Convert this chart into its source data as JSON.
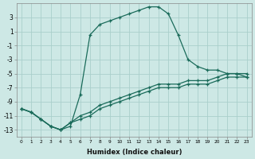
{
  "xlabel": "Humidex (Indice chaleur)",
  "background_color": "#cde8e5",
  "grid_color": "#aacfcb",
  "line_color": "#1a6b5a",
  "xlim": [
    -0.5,
    23.5
  ],
  "ylim": [
    -14,
    5
  ],
  "xtick_vals": [
    0,
    1,
    2,
    3,
    4,
    5,
    6,
    7,
    8,
    9,
    10,
    11,
    12,
    13,
    14,
    15,
    16,
    17,
    18,
    19,
    20,
    21,
    22,
    23
  ],
  "xtick_labels": [
    "0",
    "1",
    "2",
    "3",
    "4",
    "5",
    "6",
    "7",
    "8",
    "9",
    "10",
    "11",
    "12",
    "13",
    "14",
    "15",
    "16",
    "17",
    "18",
    "19",
    "20",
    "21",
    "22",
    "23"
  ],
  "ytick_values": [
    3,
    1,
    -1,
    -3,
    -5,
    -7,
    -9,
    -11,
    -13
  ],
  "series": [
    {
      "x": [
        0,
        1,
        2,
        3,
        4,
        5,
        6,
        7,
        8,
        9,
        10,
        11,
        12,
        13,
        14,
        15,
        16,
        17,
        18,
        19,
        20,
        21,
        22,
        23
      ],
      "y": [
        -10.0,
        -10.5,
        -11.5,
        -12.5,
        -13.0,
        -12.5,
        -8.0,
        0.5,
        2.0,
        2.5,
        3.0,
        3.5,
        4.0,
        4.5,
        4.5,
        3.5,
        0.5,
        -3.0,
        -4.0,
        -4.5,
        -4.5,
        -5.0,
        -5.0,
        -5.5
      ]
    },
    {
      "x": [
        0,
        1,
        2,
        3,
        4,
        5,
        6,
        7,
        8,
        9,
        10,
        11,
        12,
        13,
        14,
        15,
        16,
        17,
        18,
        19,
        20,
        21,
        22,
        23
      ],
      "y": [
        -10.0,
        -10.5,
        -11.5,
        -12.5,
        -13.0,
        -12.0,
        -11.0,
        -10.5,
        -9.5,
        -9.0,
        -8.5,
        -8.0,
        -7.5,
        -7.0,
        -6.5,
        -6.5,
        -6.5,
        -6.0,
        -6.0,
        -6.0,
        -5.5,
        -5.0,
        -5.0,
        -5.0
      ]
    },
    {
      "x": [
        0,
        1,
        2,
        3,
        4,
        5,
        6,
        7,
        8,
        9,
        10,
        11,
        12,
        13,
        14,
        15,
        16,
        17,
        18,
        19,
        20,
        21,
        22,
        23
      ],
      "y": [
        -10.0,
        -10.5,
        -11.5,
        -12.5,
        -13.0,
        -12.0,
        -11.5,
        -11.0,
        -10.0,
        -9.5,
        -9.0,
        -8.5,
        -8.0,
        -7.5,
        -7.0,
        -7.0,
        -7.0,
        -6.5,
        -6.5,
        -6.5,
        -6.0,
        -5.5,
        -5.5,
        -5.5
      ]
    }
  ]
}
